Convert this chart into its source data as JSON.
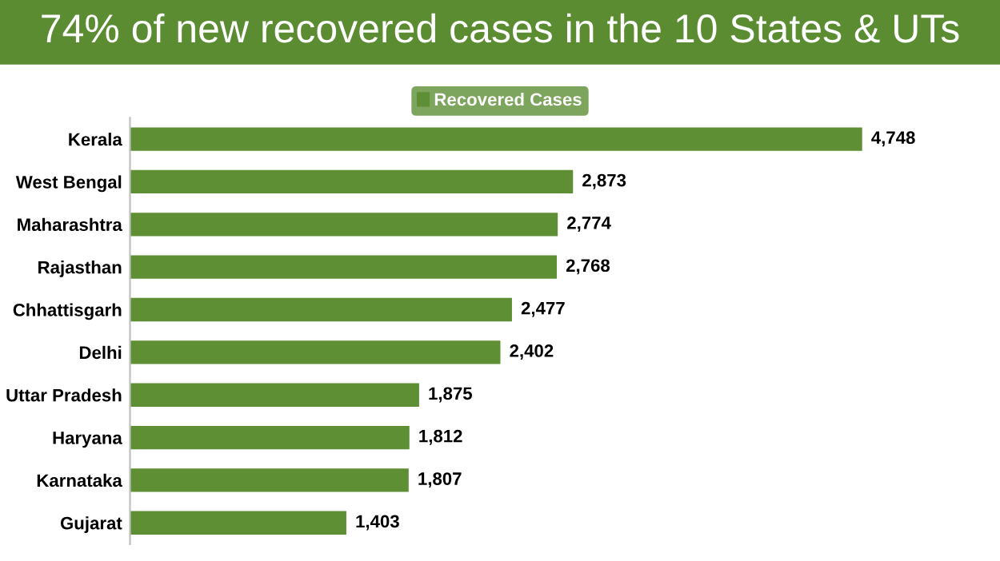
{
  "chart_data": {
    "type": "bar",
    "orientation": "horizontal",
    "title": "74% of new recovered cases in the 10 States & UTs",
    "categories": [
      "Kerala",
      "West Bengal",
      "Maharashtra",
      "Rajasthan",
      "Chhattisgarh",
      "Delhi",
      "Uttar Pradesh",
      "Haryana",
      "Karnataka",
      "Gujarat"
    ],
    "series": [
      {
        "name": "Recovered Cases",
        "color": "#5e8f35",
        "values": [
          4748,
          2873,
          2774,
          2768,
          2477,
          2402,
          1875,
          1812,
          1807,
          1403
        ],
        "value_labels": [
          "4,748",
          "2,873",
          "2,774",
          "2,768",
          "2,477",
          "2,402",
          "1,875",
          "1,812",
          "1,807",
          "1,403"
        ]
      }
    ],
    "legend": "top",
    "grid": false
  }
}
